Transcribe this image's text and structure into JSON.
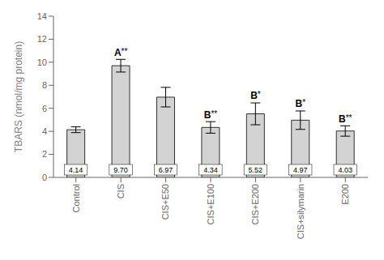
{
  "chart_data": {
    "type": "bar",
    "categories": [
      "Control",
      "CIS",
      "CIS+E50",
      "CIS+E100",
      "CIS+E200",
      "CIS+silymarin",
      "E200"
    ],
    "values": [
      4.14,
      9.7,
      6.97,
      4.34,
      5.52,
      4.97,
      4.03
    ],
    "errors": [
      0.25,
      0.55,
      0.85,
      0.5,
      0.95,
      0.8,
      0.45
    ],
    "value_labels": [
      "4.14",
      "9.70",
      "6.97",
      "4.34",
      "5.52",
      "4.97",
      "4.03"
    ],
    "data_labels": true,
    "color": "#d3d3d3",
    "ylabel": "TBARS (nmol/mg protein)",
    "ylim": [
      0,
      14
    ],
    "yticks": [
      0,
      2,
      4,
      6,
      8,
      10,
      12,
      14
    ],
    "grid": false,
    "annotations": [
      {
        "text": "A**",
        "x": "CIS",
        "y": 10.35
      },
      {
        "text": "B**",
        "x": "CIS+E100",
        "y": 4.95
      },
      {
        "text": "B*",
        "x": "CIS+E200",
        "y": 6.58
      },
      {
        "text": "B*",
        "x": "CIS+silymarin",
        "y": 5.88
      },
      {
        "text": "B**",
        "x": "E200",
        "y": 4.58
      }
    ]
  }
}
